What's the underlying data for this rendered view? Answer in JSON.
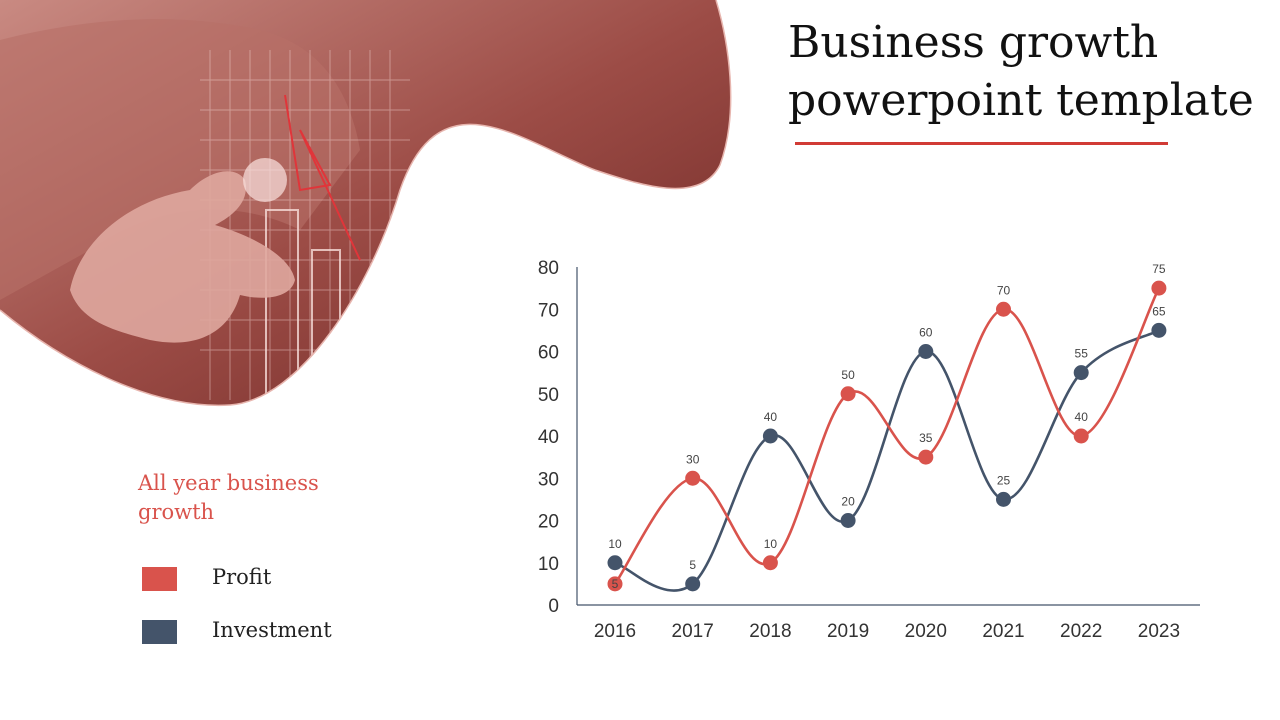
{
  "slide": {
    "title": "Business growth powerpoint template",
    "subtitle": "All year business growth"
  },
  "legend": [
    {
      "label": "Profit",
      "color": "#d9534c"
    },
    {
      "label": "Investment",
      "color": "#44546a"
    }
  ],
  "hero_image": {
    "icon": "hand-pointing-at-chart-photo",
    "tint": "#8a3a35"
  },
  "chart_data": {
    "type": "line",
    "categories": [
      "2016",
      "2017",
      "2018",
      "2019",
      "2020",
      "2021",
      "2022",
      "2023"
    ],
    "series": [
      {
        "name": "Profit",
        "color": "#d9534c",
        "values": [
          5,
          30,
          10,
          50,
          35,
          70,
          40,
          75
        ]
      },
      {
        "name": "Investment",
        "color": "#44546a",
        "values": [
          10,
          5,
          40,
          20,
          60,
          25,
          55,
          65
        ]
      }
    ],
    "yticks": [
      "0",
      "10",
      "20",
      "30",
      "40",
      "50",
      "60",
      "70",
      "80"
    ],
    "ylim": [
      0,
      80
    ],
    "smooth": true,
    "data_labels": true,
    "grid": false,
    "legend_position": "left"
  }
}
